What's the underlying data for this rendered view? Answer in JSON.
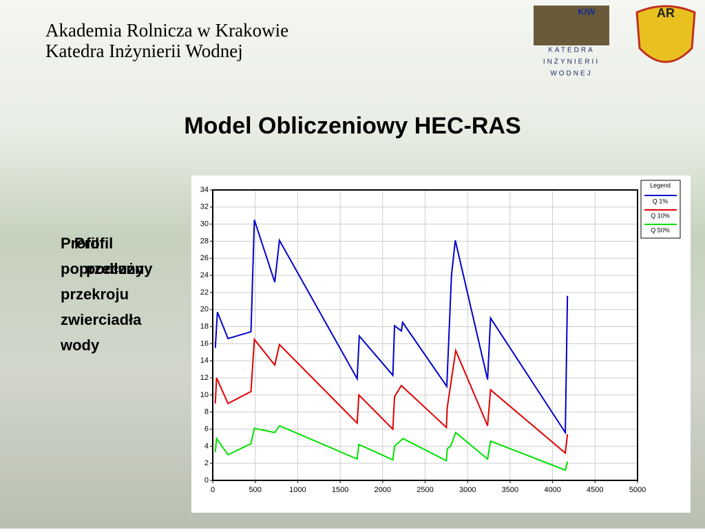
{
  "header": {
    "line1": "Akademia Rolnicza w Krakowie",
    "line2": "Katedra Inżynierii Wodnej"
  },
  "logos": {
    "kiw": "KIW",
    "kiw_lines": [
      "KATEDRA",
      "INŻYNIERII",
      "WODNEJ"
    ],
    "ar": "AR"
  },
  "slide_title": "Model Obliczeniowy HEC-RAS",
  "side_text": {
    "a": [
      "Profil",
      "poprzeczny",
      "przekroju",
      "zwierciadła",
      "wody"
    ],
    "b": [
      "Profil",
      "podłużny"
    ]
  },
  "chart_data": {
    "type": "line",
    "legend_title": "Legend",
    "legend": "top-right",
    "grid": true,
    "xlim": [
      0,
      5000
    ],
    "xticks": [
      0,
      500,
      1000,
      1500,
      2000,
      2500,
      3000,
      3500,
      4000,
      4500,
      5000
    ],
    "ylim": [
      0,
      34
    ],
    "yticks": [
      0,
      2,
      4,
      6,
      8,
      10,
      12,
      14,
      16,
      18,
      20,
      22,
      24,
      26,
      28,
      30,
      32,
      34
    ],
    "series": [
      {
        "name": "Q 1%",
        "color": "#0000cc",
        "x": [
          30,
          55,
          180,
          450,
          490,
          730,
          785,
          1700,
          1725,
          2120,
          2140,
          2220,
          2235,
          2755,
          2810,
          2855,
          3235,
          3270,
          4150,
          4175
        ],
        "values": [
          15.5,
          19.7,
          16.6,
          17.4,
          30.5,
          23.2,
          28.1,
          11.9,
          16.9,
          12.3,
          18.1,
          17.5,
          18.5,
          11,
          24,
          28.1,
          11.8,
          19,
          5.6,
          21.6
        ]
      },
      {
        "name": "Q 10%",
        "color": "#e00000",
        "x": [
          30,
          45,
          180,
          450,
          490,
          730,
          785,
          1700,
          1720,
          2120,
          2140,
          2220,
          2750,
          2760,
          2860,
          3235,
          3270,
          4150,
          4175
        ],
        "values": [
          9,
          12,
          9,
          10.4,
          16.5,
          13.5,
          15.9,
          6.7,
          10,
          6,
          9.8,
          11.1,
          6.2,
          8.5,
          15.2,
          6.4,
          10.6,
          3.2,
          5.4
        ]
      },
      {
        "name": "Q 50%",
        "color": "#00e000",
        "x": [
          30,
          45,
          180,
          450,
          490,
          730,
          785,
          1700,
          1720,
          2120,
          2140,
          2240,
          2750,
          2760,
          2800,
          2860,
          3235,
          3270,
          4150,
          4175
        ],
        "values": [
          3.3,
          4.9,
          3,
          4.3,
          6.1,
          5.6,
          6.4,
          2.5,
          4.2,
          2.4,
          4,
          4.9,
          2.3,
          3.7,
          4,
          5.6,
          2.5,
          4.6,
          1.2,
          2.2
        ]
      }
    ]
  }
}
